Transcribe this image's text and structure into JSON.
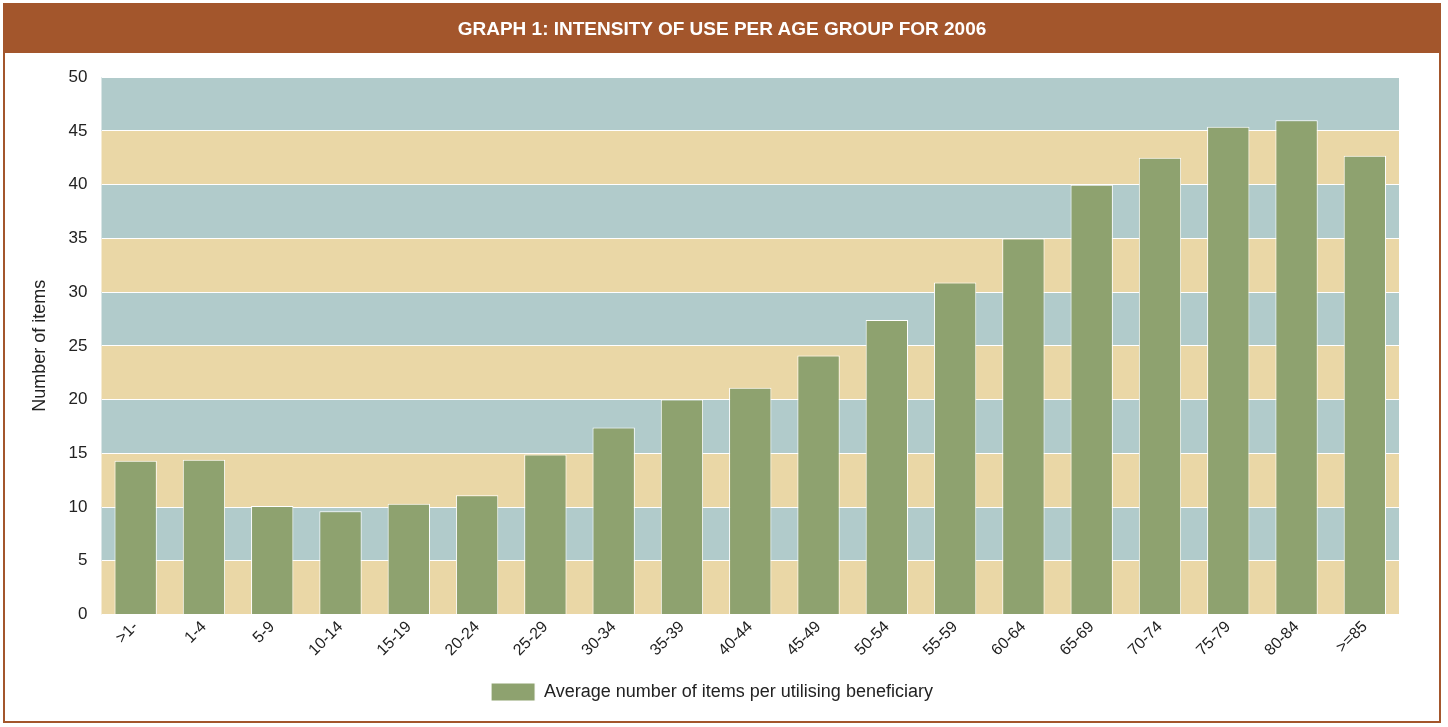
{
  "chart_data": {
    "type": "bar",
    "title": "GRAPH 1: INTENSITY OF USE PER AGE GROUP FOR 2006",
    "ylabel": "Number of items",
    "categories": [
      ">1-",
      "1-4",
      "5-9",
      "10-14",
      "15-19",
      "20-24",
      "25-29",
      "30-34",
      "35-39",
      "40-44",
      "45-49",
      "50-54",
      "55-59",
      "60-64",
      "65-69",
      "70-74",
      "75-79",
      "80-84",
      ">=85"
    ],
    "series": [
      {
        "name": "Average number of items per utilising beneficiary",
        "color": "#8ea26f",
        "values": [
          14.3,
          14.4,
          10.1,
          9.6,
          10.3,
          11.1,
          14.9,
          17.4,
          20.0,
          21.1,
          24.1,
          27.4,
          30.9,
          35.0,
          40.0,
          42.5,
          45.4,
          46.0,
          42.7
        ]
      }
    ],
    "bands": [
      {
        "axis": "y",
        "from": 0,
        "to": 5,
        "color": "#ead7a6"
      },
      {
        "axis": "y",
        "from": 5,
        "to": 10,
        "color": "#b1cbcb"
      },
      {
        "axis": "y",
        "from": 10,
        "to": 15,
        "color": "#ead7a6"
      },
      {
        "axis": "y",
        "from": 15,
        "to": 20,
        "color": "#b1cbcb"
      },
      {
        "axis": "y",
        "from": 20,
        "to": 25,
        "color": "#ead7a6"
      },
      {
        "axis": "y",
        "from": 25,
        "to": 30,
        "color": "#b1cbcb"
      },
      {
        "axis": "y",
        "from": 30,
        "to": 35,
        "color": "#ead7a6"
      },
      {
        "axis": "y",
        "from": 35,
        "to": 40,
        "color": "#b1cbcb"
      },
      {
        "axis": "y",
        "from": 40,
        "to": 45,
        "color": "#ead7a6"
      },
      {
        "axis": "y",
        "from": 45,
        "to": 50,
        "color": "#b1cbcb"
      }
    ],
    "ylim": [
      0,
      50
    ],
    "yticks": [
      0,
      5,
      10,
      15,
      20,
      25,
      30,
      35,
      40,
      45,
      50
    ],
    "grid": "y",
    "legend": "bottom"
  }
}
